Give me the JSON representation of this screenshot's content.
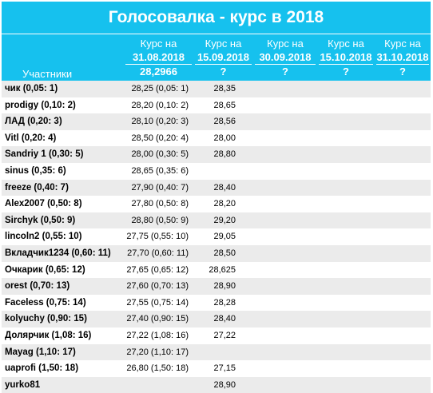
{
  "title": "Голосовалка - курс в 2018",
  "header": {
    "participants_label": "Участники",
    "columns": [
      {
        "label": "Курс на",
        "date": "31.08.2018",
        "value": "28,2966"
      },
      {
        "label": "Курс на",
        "date": "15.09.2018",
        "value": "?"
      },
      {
        "label": "Курс на",
        "date": "30.09.2018",
        "value": "?"
      },
      {
        "label": "Курс на",
        "date": "15.10.2018",
        "value": "?"
      },
      {
        "label": "Курс на",
        "date": "31.10.2018",
        "value": "?"
      }
    ]
  },
  "rows": [
    {
      "name": "чик (0,05: 1)",
      "v1": "28,25 (0,05: 1)",
      "v2": "28,35"
    },
    {
      "name": "prodigy (0,10: 2)",
      "v1": "28,20 (0,10: 2)",
      "v2": "28,65"
    },
    {
      "name": "ЛАД (0,20: 3)",
      "v1": "28,10 (0,20: 3)",
      "v2": "28,56"
    },
    {
      "name": "Vitl (0,20: 4)",
      "v1": "28,50 (0,20: 4)",
      "v2": "28,00"
    },
    {
      "name": "Sandriy 1 (0,30: 5)",
      "v1": "28,00 (0,30: 5)",
      "v2": "28,80"
    },
    {
      "name": "sinus (0,35: 6)",
      "v1": "28,65 (0,35: 6)",
      "v2": ""
    },
    {
      "name": "freeze (0,40: 7)",
      "v1": "27,90 (0,40: 7)",
      "v2": "28,40"
    },
    {
      "name": "Alex2007 (0,50: 8)",
      "v1": "27,80 (0,50: 8)",
      "v2": "28,20"
    },
    {
      "name": "Sirchyk (0,50: 9)",
      "v1": "28,80 (0,50: 9)",
      "v2": "29,20"
    },
    {
      "name": "lincoln2 (0,55: 10)",
      "v1": "27,75 (0,55: 10)",
      "v2": "29,05"
    },
    {
      "name": "Вкладчик1234 (0,60: 11)",
      "v1": "27,70 (0,60: 11)",
      "v2": "28,50"
    },
    {
      "name": "Очкарик (0,65: 12)",
      "v1": "27,65 (0,65: 12)",
      "v2": "28,625"
    },
    {
      "name": "orest (0,70: 13)",
      "v1": "27,60 (0,70: 13)",
      "v2": "28,90"
    },
    {
      "name": "Faceless (0,75: 14)",
      "v1": "27,55 (0,75: 14)",
      "v2": "28,28"
    },
    {
      "name": "kolyuchy (0,90: 15)",
      "v1": "27,40 (0,90: 15)",
      "v2": "28,40"
    },
    {
      "name": "Долярчик (1,08: 16)",
      "v1": "27,22 (1,08: 16)",
      "v2": "27,22"
    },
    {
      "name": "Mayag (1,10: 17)",
      "v1": "27,20 (1,10: 17)",
      "v2": ""
    },
    {
      "name": "uaprofi (1,50: 18)",
      "v1": "26,80 (1,50: 18)",
      "v2": "27,15"
    },
    {
      "name": "yurko81",
      "v1": "",
      "v2": "28,90"
    }
  ],
  "colors": {
    "header_bg": "#16c1ee",
    "row_alt": "#ebebeb"
  }
}
